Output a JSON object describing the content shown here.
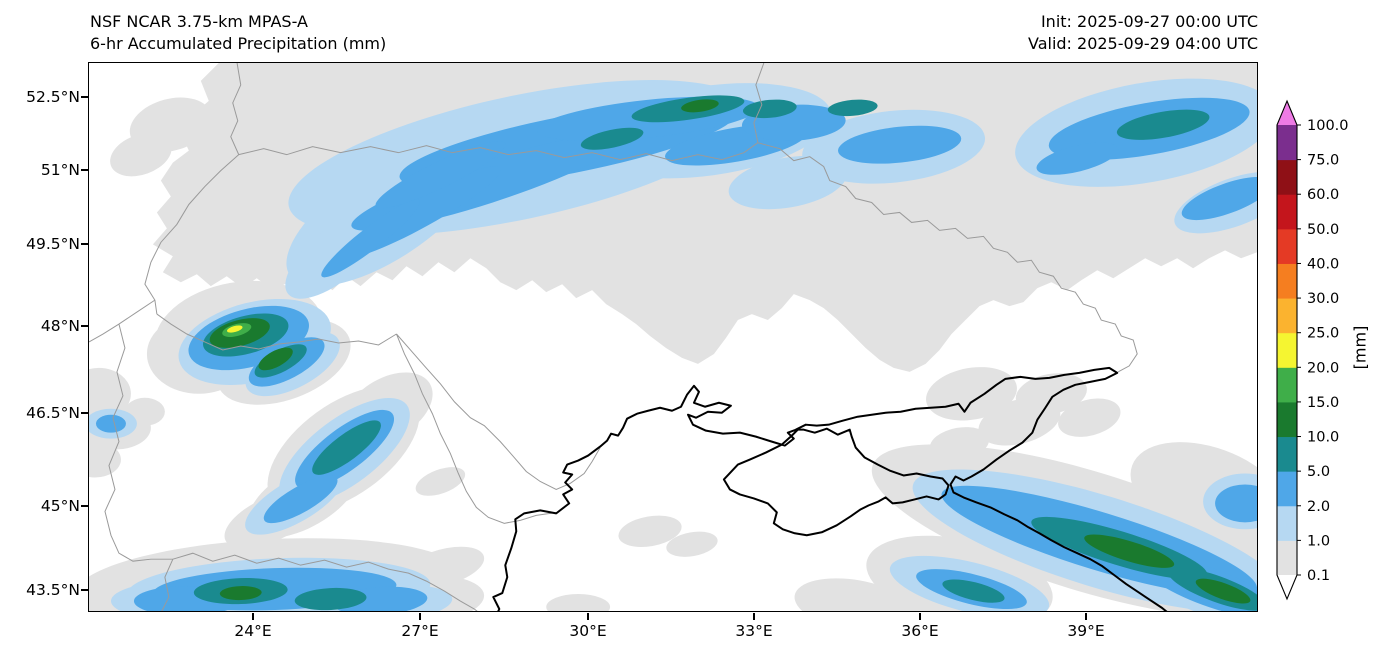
{
  "header": {
    "title_line1": "NSF NCAR 3.75-km MPAS-A",
    "title_line2": "6-hr Accumulated Precipitation (mm)",
    "init_label": "Init: 2025-09-27 00:00 UTC",
    "valid_label": "Valid: 2025-09-29 04:00 UTC"
  },
  "axes": {
    "y_tick_labels": [
      "52.5°N",
      "51°N",
      "49.5°N",
      "48°N",
      "46.5°N",
      "45°N",
      "43.5°N"
    ],
    "x_tick_labels": [
      "24°E",
      "27°E",
      "30°E",
      "33°E",
      "36°E",
      "39°E"
    ]
  },
  "colorbar": {
    "unit_label": "[mm]",
    "tick_labels_top_to_bottom": [
      "100.0",
      "75.0",
      "60.0",
      "50.0",
      "40.0",
      "30.0",
      "25.0",
      "20.0",
      "15.0",
      "10.0",
      "5.0",
      "2.0",
      "1.0",
      "0.1"
    ],
    "levels_mm": [
      0.1,
      1,
      2,
      5,
      10,
      15,
      20,
      25,
      30,
      40,
      50,
      60,
      75,
      100
    ],
    "segment_colors_bottom_to_top": [
      "#e2e2e2",
      "#b6d8f2",
      "#4fa7e8",
      "#1a8a8f",
      "#1a7a2e",
      "#3fae49",
      "#f5f531",
      "#fbb32f",
      "#f57e20",
      "#e43a25",
      "#c4151c",
      "#8f1016",
      "#7b2e8e"
    ],
    "under_color": "#ffffff",
    "over_color": "#ee7be5"
  },
  "map": {
    "precipitation_features": [
      {
        "area": "northern band along Ukraine–Belarus border, 25–34°E around 51–52.8°N",
        "intensity_mm": "1–10",
        "pattern": "curved WSW–ENE rain streaks with teal cores"
      },
      {
        "area": "northeast corner, 38–41.5°E / 51.5–52.8°N",
        "intensity_mm": "1–10",
        "pattern": "blue streaks"
      },
      {
        "area": "Carpathians near 24°E / 48°N",
        "intensity_mm": "up to 20–25",
        "pattern": "compact cell, green core with yellow dash"
      },
      {
        "area": "Moldova/Romania, 25.5–26.5°E / 45.5–47°N",
        "intensity_mm": "1–10",
        "pattern": "diagonal streaks"
      },
      {
        "area": "southwest corner along 43.5°N, 21.5–27°E",
        "intensity_mm": "1–15",
        "pattern": "elongated band clipped by frame"
      },
      {
        "area": "Caucasus Black Sea coast, 36–41.5°E / 43–45°N",
        "intensity_mm": "1–15",
        "pattern": "long diagonal coastal band"
      },
      {
        "area": "broad envelopes north and south",
        "intensity_mm": "0.1–1",
        "pattern": "light gray areas of trace precipitation"
      }
    ]
  }
}
